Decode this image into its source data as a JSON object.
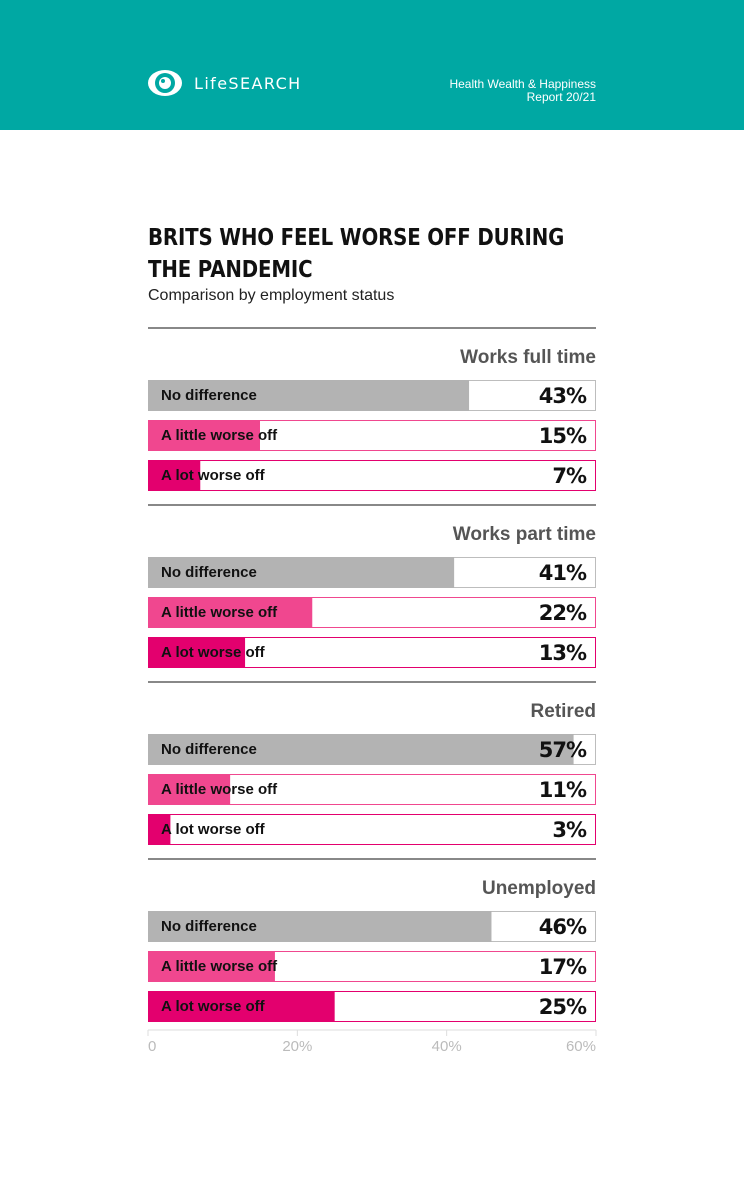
{
  "header": {
    "brand": "LifeSEARCH",
    "report_line1": "Health Wealth & Happiness",
    "report_line2": "Report 20/21",
    "bg_color": "#00a8a3"
  },
  "chart_data": {
    "type": "bar",
    "title": "BRITS WHO FEEL WORSE OFF DURING THE PANDEMIC",
    "subtitle": "Comparison by employment status",
    "xlim": [
      0,
      60
    ],
    "xticks": [
      "0",
      "20%",
      "40%",
      "60%"
    ],
    "categories": [
      "No difference",
      "A little worse off",
      "A lot worse off"
    ],
    "colors": {
      "No difference": "#b3b3b3",
      "A little worse off": "#f0478f",
      "A lot worse off": "#e3006e"
    },
    "groups": [
      {
        "name": "Works full time",
        "values": [
          43,
          15,
          7
        ],
        "labels": [
          "43%",
          "15%",
          "7%"
        ]
      },
      {
        "name": "Works part time",
        "values": [
          41,
          22,
          13
        ],
        "labels": [
          "41%",
          "22%",
          "13%"
        ]
      },
      {
        "name": "Retired",
        "values": [
          57,
          11,
          3
        ],
        "labels": [
          "57%",
          "11%",
          "3%"
        ]
      },
      {
        "name": "Unemployed",
        "values": [
          46,
          17,
          25
        ],
        "labels": [
          "46%",
          "17%",
          "25%"
        ]
      }
    ]
  }
}
